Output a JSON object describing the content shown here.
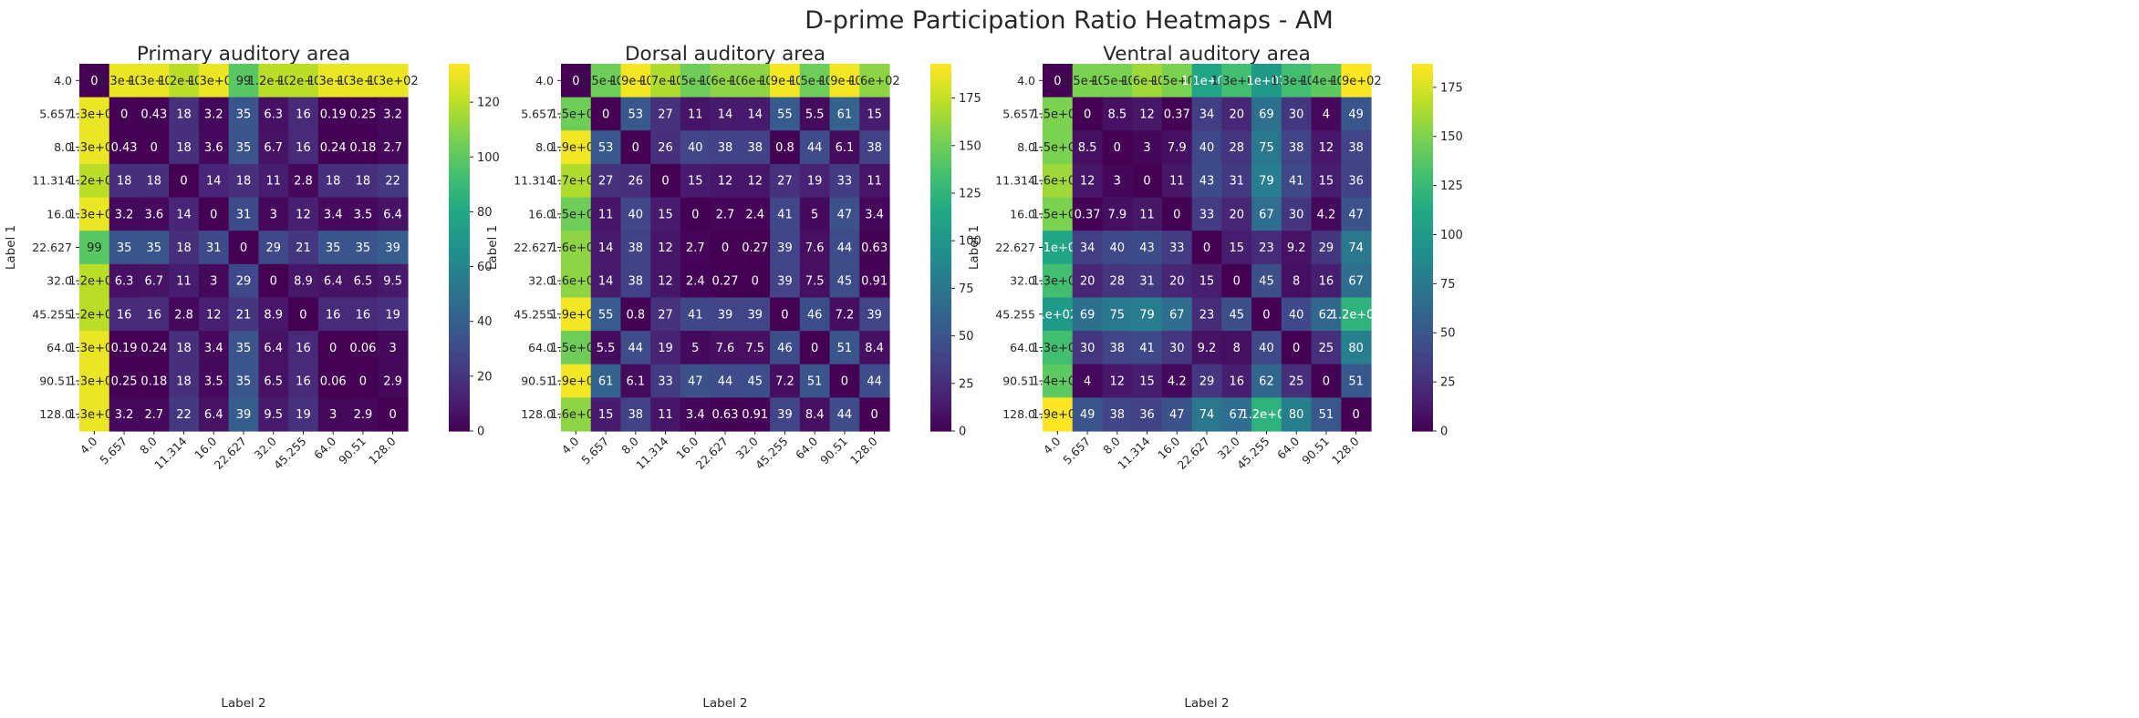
{
  "figure": {
    "suptitle": "D-prime Participation Ratio Heatmaps - AM"
  },
  "chart_data": [
    {
      "type": "heatmap",
      "title": "Primary auditory area",
      "xlabel": "Label 2",
      "ylabel": "Label 1",
      "x_tick_labels": [
        "4.0",
        "5.657",
        "8.0",
        "11.314",
        "16.0",
        "22.627",
        "32.0",
        "45.255",
        "64.0",
        "90.51",
        "128.0"
      ],
      "y_tick_labels": [
        "4.0",
        "5.657",
        "8.0",
        "11.314",
        "16.0",
        "22.627",
        "32.0",
        "45.255",
        "64.0",
        "90.51",
        "128.0"
      ],
      "colormap": "viridis",
      "vmin": 0,
      "vmax": 134,
      "colorbar_ticks": [
        0,
        20,
        40,
        60,
        80,
        100,
        120
      ],
      "values": [
        [
          0,
          130,
          130,
          120,
          130,
          99,
          120,
          120,
          130,
          130,
          130
        ],
        [
          130,
          0,
          0.43,
          18,
          3.2,
          35,
          6.3,
          16,
          0.19,
          0.25,
          3.2
        ],
        [
          130,
          0.43,
          0,
          18,
          3.6,
          35,
          6.7,
          16,
          0.24,
          0.18,
          2.7
        ],
        [
          120,
          18,
          18,
          0,
          14,
          18,
          11,
          2.8,
          18,
          18,
          22
        ],
        [
          130,
          3.2,
          3.6,
          14,
          0,
          31,
          3,
          12,
          3.4,
          3.5,
          6.4
        ],
        [
          99,
          35,
          35,
          18,
          31,
          0,
          29,
          21,
          35,
          35,
          39
        ],
        [
          120,
          6.3,
          6.7,
          11,
          3,
          29,
          0,
          8.9,
          6.4,
          6.5,
          9.5
        ],
        [
          120,
          16,
          16,
          2.8,
          12,
          21,
          8.9,
          0,
          16,
          16,
          19
        ],
        [
          130,
          0.19,
          0.24,
          18,
          3.4,
          35,
          6.4,
          16,
          0,
          0.06,
          3
        ],
        [
          130,
          0.25,
          0.18,
          18,
          3.5,
          35,
          6.5,
          16,
          0.06,
          0,
          2.9
        ],
        [
          130,
          3.2,
          2.7,
          22,
          6.4,
          39,
          9.5,
          19,
          3,
          2.9,
          0
        ]
      ],
      "annotations": [
        [
          "0",
          "1.3e+02",
          "1.3e+02",
          "1.2e+02",
          "1.3e+02",
          "99",
          "1.2e+02",
          "1.2e+02",
          "1.3e+02",
          "1.3e+02",
          "1.3e+02"
        ],
        [
          "1.3e+02",
          "0",
          "0.43",
          "18",
          "3.2",
          "35",
          "6.3",
          "16",
          "0.19",
          "0.25",
          "3.2"
        ],
        [
          "1.3e+02",
          "0.43",
          "0",
          "18",
          "3.6",
          "35",
          "6.7",
          "16",
          "0.24",
          "0.18",
          "2.7"
        ],
        [
          "1.2e+02",
          "18",
          "18",
          "0",
          "14",
          "18",
          "11",
          "2.8",
          "18",
          "18",
          "22"
        ],
        [
          "1.3e+02",
          "3.2",
          "3.6",
          "14",
          "0",
          "31",
          "3",
          "12",
          "3.4",
          "3.5",
          "6.4"
        ],
        [
          "99",
          "35",
          "35",
          "18",
          "31",
          "0",
          "29",
          "21",
          "35",
          "35",
          "39"
        ],
        [
          "1.2e+02",
          "6.3",
          "6.7",
          "11",
          "3",
          "29",
          "0",
          "8.9",
          "6.4",
          "6.5",
          "9.5"
        ],
        [
          "1.2e+02",
          "16",
          "16",
          "2.8",
          "12",
          "21",
          "8.9",
          "0",
          "16",
          "16",
          "19"
        ],
        [
          "1.3e+02",
          "0.19",
          "0.24",
          "18",
          "3.4",
          "35",
          "6.4",
          "16",
          "0",
          "0.06",
          "3"
        ],
        [
          "1.3e+02",
          "0.25",
          "0.18",
          "18",
          "3.5",
          "35",
          "6.5",
          "16",
          "0.06",
          "0",
          "2.9"
        ],
        [
          "1.3e+02",
          "3.2",
          "2.7",
          "22",
          "6.4",
          "39",
          "9.5",
          "19",
          "3",
          "2.9",
          "0"
        ]
      ]
    },
    {
      "type": "heatmap",
      "title": "Dorsal auditory area",
      "xlabel": "Label 2",
      "ylabel": "Label 1",
      "x_tick_labels": [
        "4.0",
        "5.657",
        "8.0",
        "11.314",
        "16.0",
        "22.627",
        "32.0",
        "45.255",
        "64.0",
        "90.51",
        "128.0"
      ],
      "y_tick_labels": [
        "4.0",
        "5.657",
        "8.0",
        "11.314",
        "16.0",
        "22.627",
        "32.0",
        "45.255",
        "64.0",
        "90.51",
        "128.0"
      ],
      "colormap": "viridis",
      "vmin": 0,
      "vmax": 193,
      "colorbar_ticks": [
        0,
        25,
        50,
        75,
        100,
        125,
        150,
        175
      ],
      "values": [
        [
          0,
          150,
          190,
          170,
          150,
          160,
          160,
          190,
          150,
          190,
          160
        ],
        [
          150,
          0,
          53,
          27,
          11,
          14,
          14,
          55,
          5.5,
          61,
          15
        ],
        [
          190,
          53,
          0,
          26,
          40,
          38,
          38,
          0.8,
          44,
          6.1,
          38
        ],
        [
          170,
          27,
          26,
          0,
          15,
          12,
          12,
          27,
          19,
          33,
          11
        ],
        [
          150,
          11,
          40,
          15,
          0,
          2.7,
          2.4,
          41,
          5,
          47,
          3.4
        ],
        [
          160,
          14,
          38,
          12,
          2.7,
          0,
          0.27,
          39,
          7.6,
          44,
          0.63
        ],
        [
          160,
          14,
          38,
          12,
          2.4,
          0.27,
          0,
          39,
          7.5,
          45,
          0.91
        ],
        [
          190,
          55,
          0.8,
          27,
          41,
          39,
          39,
          0,
          46,
          7.2,
          39
        ],
        [
          150,
          5.5,
          44,
          19,
          5,
          7.6,
          7.5,
          46,
          0,
          51,
          8.4
        ],
        [
          190,
          61,
          6.1,
          33,
          47,
          44,
          45,
          7.2,
          51,
          0,
          44
        ],
        [
          160,
          15,
          38,
          11,
          3.4,
          0.63,
          0.91,
          39,
          8.4,
          44,
          0
        ]
      ],
      "annotations": [
        [
          "0",
          "1.5e+02",
          "1.9e+02",
          "1.7e+02",
          "1.5e+02",
          "1.6e+02",
          "1.6e+02",
          "1.9e+02",
          "1.5e+02",
          "1.9e+02",
          "1.6e+02"
        ],
        [
          "1.5e+02",
          "0",
          "53",
          "27",
          "11",
          "14",
          "14",
          "55",
          "5.5",
          "61",
          "15"
        ],
        [
          "1.9e+02",
          "53",
          "0",
          "26",
          "40",
          "38",
          "38",
          "0.8",
          "44",
          "6.1",
          "38"
        ],
        [
          "1.7e+02",
          "27",
          "26",
          "0",
          "15",
          "12",
          "12",
          "27",
          "19",
          "33",
          "11"
        ],
        [
          "1.5e+02",
          "11",
          "40",
          "15",
          "0",
          "2.7",
          "2.4",
          "41",
          "5",
          "47",
          "3.4"
        ],
        [
          "1.6e+02",
          "14",
          "38",
          "12",
          "2.7",
          "0",
          "0.27",
          "39",
          "7.6",
          "44",
          "0.63"
        ],
        [
          "1.6e+02",
          "14",
          "38",
          "12",
          "2.4",
          "0.27",
          "0",
          "39",
          "7.5",
          "45",
          "0.91"
        ],
        [
          "1.9e+02",
          "55",
          "0.8",
          "27",
          "41",
          "39",
          "39",
          "0",
          "46",
          "7.2",
          "39"
        ],
        [
          "1.5e+02",
          "5.5",
          "44",
          "19",
          "5",
          "7.6",
          "7.5",
          "46",
          "0",
          "51",
          "8.4"
        ],
        [
          "1.9e+02",
          "61",
          "6.1",
          "33",
          "47",
          "44",
          "45",
          "7.2",
          "51",
          "0",
          "44"
        ],
        [
          "1.6e+02",
          "15",
          "38",
          "11",
          "3.4",
          "0.63",
          "0.91",
          "39",
          "8.4",
          "44",
          "0"
        ]
      ]
    },
    {
      "type": "heatmap",
      "title": "Ventral auditory area",
      "xlabel": "Label 2",
      "ylabel": "Label 1",
      "x_tick_labels": [
        "4.0",
        "5.657",
        "8.0",
        "11.314",
        "16.0",
        "22.627",
        "32.0",
        "45.255",
        "64.0",
        "90.51",
        "128.0"
      ],
      "y_tick_labels": [
        "4.0",
        "5.657",
        "8.0",
        "11.314",
        "16.0",
        "22.627",
        "32.0",
        "45.255",
        "64.0",
        "90.51",
        "128.0"
      ],
      "colormap": "viridis",
      "vmin": 0,
      "vmax": 187,
      "colorbar_ticks": [
        0,
        25,
        50,
        75,
        100,
        125,
        150,
        175
      ],
      "values": [
        [
          0,
          150,
          150,
          160,
          150,
          110,
          130,
          100,
          130,
          140,
          190
        ],
        [
          150,
          0,
          8.5,
          12,
          0.37,
          34,
          20,
          69,
          30,
          4,
          49
        ],
        [
          150,
          8.5,
          0,
          3,
          7.9,
          40,
          28,
          75,
          38,
          12,
          38
        ],
        [
          160,
          12,
          3,
          0,
          11,
          43,
          31,
          79,
          41,
          15,
          36
        ],
        [
          150,
          0.37,
          7.9,
          11,
          0,
          33,
          20,
          67,
          30,
          4.2,
          47
        ],
        [
          110,
          34,
          40,
          43,
          33,
          0,
          15,
          23,
          9.2,
          29,
          74
        ],
        [
          130,
          20,
          28,
          31,
          20,
          15,
          0,
          45,
          8,
          16,
          67
        ],
        [
          100,
          69,
          75,
          79,
          67,
          23,
          45,
          0,
          40,
          62,
          120
        ],
        [
          130,
          30,
          38,
          41,
          30,
          9.2,
          8,
          40,
          0,
          25,
          80
        ],
        [
          140,
          4,
          12,
          15,
          4.2,
          29,
          16,
          62,
          25,
          0,
          51
        ],
        [
          190,
          49,
          38,
          36,
          47,
          74,
          67,
          120,
          80,
          51,
          0
        ]
      ],
      "annotations": [
        [
          "0",
          "1.5e+02",
          "1.5e+02",
          "1.6e+02",
          "1.5e+02",
          "1.1e+02",
          "1.3e+02",
          "1e+02",
          "1.3e+02",
          "1.4e+02",
          "1.9e+02"
        ],
        [
          "1.5e+02",
          "0",
          "8.5",
          "12",
          "0.37",
          "34",
          "20",
          "69",
          "30",
          "4",
          "49"
        ],
        [
          "1.5e+02",
          "8.5",
          "0",
          "3",
          "7.9",
          "40",
          "28",
          "75",
          "38",
          "12",
          "38"
        ],
        [
          "1.6e+02",
          "12",
          "3",
          "0",
          "11",
          "43",
          "31",
          "79",
          "41",
          "15",
          "36"
        ],
        [
          "1.5e+02",
          "0.37",
          "7.9",
          "11",
          "0",
          "33",
          "20",
          "67",
          "30",
          "4.2",
          "47"
        ],
        [
          "1.1e+02",
          "34",
          "40",
          "43",
          "33",
          "0",
          "15",
          "23",
          "9.2",
          "29",
          "74"
        ],
        [
          "1.3e+02",
          "20",
          "28",
          "31",
          "20",
          "15",
          "0",
          "45",
          "8",
          "16",
          "67"
        ],
        [
          "1e+02",
          "69",
          "75",
          "79",
          "67",
          "23",
          "45",
          "0",
          "40",
          "62",
          "1.2e+02"
        ],
        [
          "1.3e+02",
          "30",
          "38",
          "41",
          "30",
          "9.2",
          "8",
          "40",
          "0",
          "25",
          "80"
        ],
        [
          "1.4e+02",
          "4",
          "12",
          "15",
          "4.2",
          "29",
          "16",
          "62",
          "25",
          "0",
          "51"
        ],
        [
          "1.9e+02",
          "49",
          "38",
          "36",
          "47",
          "74",
          "67",
          "1.2e+02",
          "80",
          "51",
          "0"
        ]
      ]
    }
  ]
}
